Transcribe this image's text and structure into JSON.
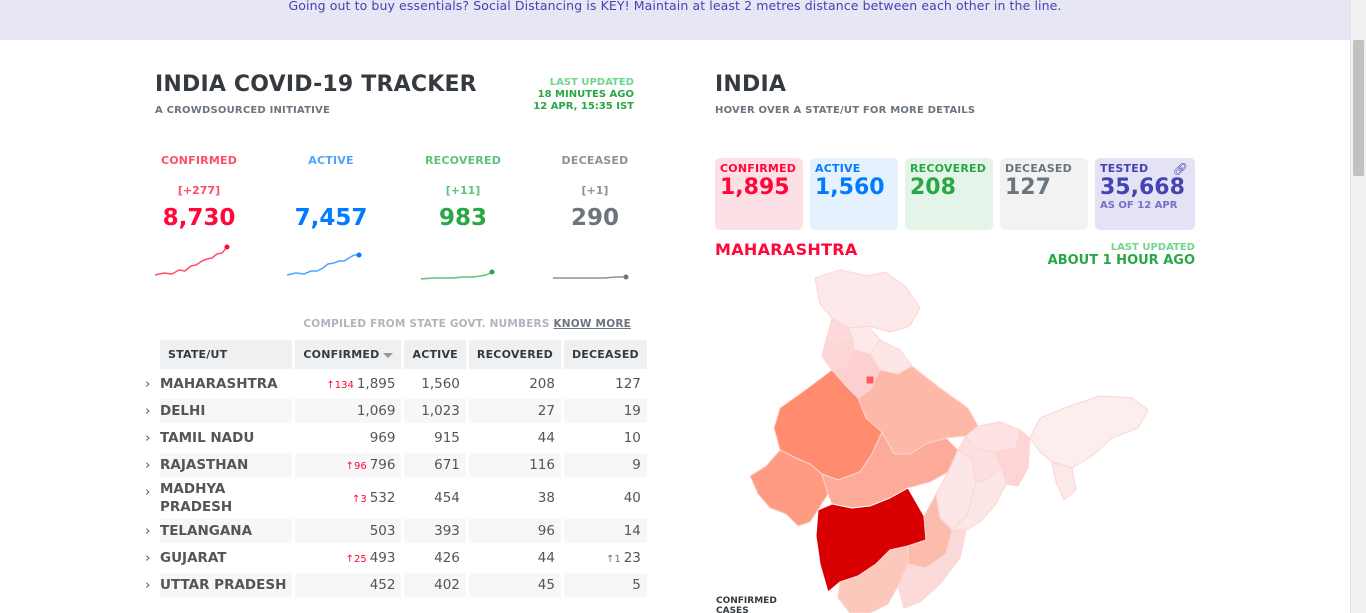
{
  "banner": {
    "text": "Going out to buy essentials? Social Distancing is KEY! Maintain at least 2 metres distance between each other in the line."
  },
  "header": {
    "title": "INDIA COVID-19 TRACKER",
    "subtitle": "A CROWDSOURCED INITIATIVE",
    "last_updated_label": "LAST UPDATED",
    "last_updated_ago": "18 MINUTES AGO",
    "last_updated_time": "12 APR, 15:35 IST"
  },
  "stats": [
    {
      "label": "CONFIRMED",
      "delta": "[+277]",
      "value": "8,730",
      "color": "#ff073a",
      "label_color": "#ff4d6a"
    },
    {
      "label": "ACTIVE",
      "delta": "",
      "value": "7,457",
      "color": "#007bff",
      "label_color": "#4fa3ff"
    },
    {
      "label": "RECOVERED",
      "delta": "[+11]",
      "value": "983",
      "color": "#28a745",
      "label_color": "#5dc27a"
    },
    {
      "label": "DECEASED",
      "delta": "[+1]",
      "value": "290",
      "color": "#6c757d",
      "label_color": "#8a939b"
    }
  ],
  "compiled": {
    "text": "COMPILED FROM STATE GOVT. NUMBERS",
    "link": "KNOW MORE"
  },
  "table": {
    "headers": [
      "STATE/UT",
      "CONFIRMED",
      "ACTIVE",
      "RECOVERED",
      "DECEASED"
    ],
    "rows": [
      {
        "state": "MAHARASHTRA",
        "inc": "134",
        "confirmed": "1,895",
        "active": "1,560",
        "recovered": "208",
        "dinc": "",
        "deceased": "127"
      },
      {
        "state": "DELHI",
        "inc": "",
        "confirmed": "1,069",
        "active": "1,023",
        "recovered": "27",
        "dinc": "",
        "deceased": "19"
      },
      {
        "state": "TAMIL NADU",
        "inc": "",
        "confirmed": "969",
        "active": "915",
        "recovered": "44",
        "dinc": "",
        "deceased": "10"
      },
      {
        "state": "RAJASTHAN",
        "inc": "96",
        "confirmed": "796",
        "active": "671",
        "recovered": "116",
        "dinc": "",
        "deceased": "9"
      },
      {
        "state": "MADHYA",
        "state2": "PRADESH",
        "inc": "3",
        "confirmed": "532",
        "active": "454",
        "recovered": "38",
        "dinc": "",
        "deceased": "40"
      },
      {
        "state": "TELANGANA",
        "inc": "",
        "confirmed": "503",
        "active": "393",
        "recovered": "96",
        "dinc": "",
        "deceased": "14"
      },
      {
        "state": "GUJARAT",
        "inc": "25",
        "confirmed": "493",
        "active": "426",
        "recovered": "44",
        "dinc": "1",
        "deceased": "23"
      },
      {
        "state": "UTTAR PRADESH",
        "inc": "",
        "confirmed": "452",
        "active": "402",
        "recovered": "45",
        "dinc": "",
        "deceased": "5"
      }
    ]
  },
  "map": {
    "title": "INDIA",
    "subtitle": "HOVER OVER A STATE/UT FOR MORE DETAILS",
    "cards": [
      {
        "label": "CONFIRMED",
        "value": "1,895",
        "sub": "",
        "bg": "#fde0e5",
        "color": "#ff073a"
      },
      {
        "label": "ACTIVE",
        "value": "1,560",
        "sub": "",
        "bg": "#e6f1fe",
        "color": "#007bff"
      },
      {
        "label": "RECOVERED",
        "value": "208",
        "sub": "",
        "bg": "#e4f4e8",
        "color": "#28a745"
      },
      {
        "label": "DECEASED",
        "value": "127",
        "sub": "",
        "bg": "#f2f2f3",
        "color": "#6c757d"
      },
      {
        "label": "TESTED",
        "value": "35,668",
        "sub": "AS OF 12 APR",
        "bg": "#e3e3f5",
        "color": "#4343b3"
      }
    ],
    "selected_state": "MAHARASHTRA",
    "last_updated_label": "LAST UPDATED",
    "last_updated_ago": "ABOUT 1 HOUR AGO",
    "legend": "CONFIRMED CASES"
  },
  "icons": {
    "link": "link-icon",
    "expand": "chevron-right-icon",
    "increase": "arrow-up-icon",
    "sort": "sort-down-icon"
  }
}
